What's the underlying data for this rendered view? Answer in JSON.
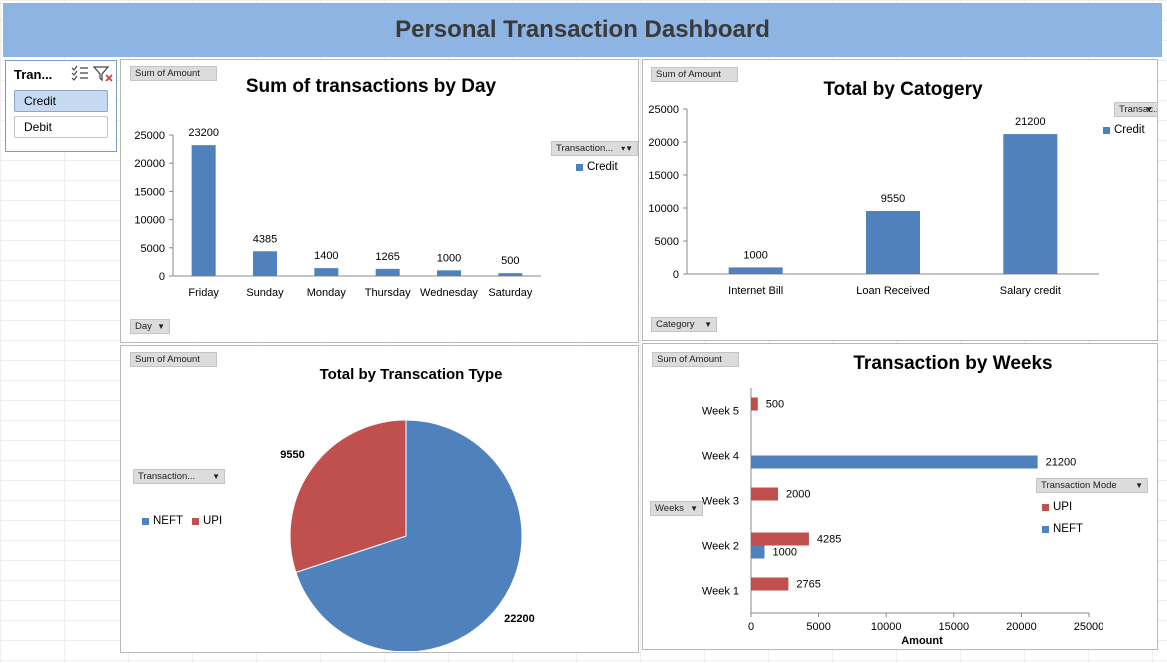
{
  "banner": {
    "title": "Personal Transaction Dashboard"
  },
  "slicer": {
    "title": "Tran...",
    "items": [
      "Credit",
      "Debit"
    ],
    "selected": "Credit"
  },
  "colors": {
    "blue": "#4f81bd",
    "red": "#c0504d",
    "banner": "#8eb4e3"
  },
  "chart_data": [
    {
      "type": "bar",
      "title": "Sum of transactions by Day",
      "field_button": "Sum of Amount",
      "axis_button": "Day",
      "legend_button": "Transaction...",
      "categories": [
        "Friday",
        "Sunday",
        "Monday",
        "Thursday",
        "Wednesday",
        "Saturday"
      ],
      "series": [
        {
          "name": "Credit",
          "values": [
            23200,
            4385,
            1400,
            1265,
            1000,
            500
          ]
        }
      ],
      "ylim": [
        0,
        25000
      ],
      "yticks": [
        "0",
        "5000",
        "10000",
        "15000",
        "20000",
        "25000"
      ],
      "data_labels": [
        "23200",
        "4385",
        "1400",
        "1265",
        "1000",
        "500"
      ]
    },
    {
      "type": "bar",
      "title": "Total by Catogery",
      "field_button": "Sum of Amount",
      "axis_button": "Category",
      "legend_button": "Transac...",
      "categories": [
        "Internet Bill",
        "Loan Received",
        "Salary credit"
      ],
      "series": [
        {
          "name": "Credit",
          "values": [
            1000,
            9550,
            21200
          ]
        }
      ],
      "ylim": [
        0,
        25000
      ],
      "yticks": [
        "0",
        "5000",
        "10000",
        "15000",
        "20000",
        "25000"
      ],
      "data_labels": [
        "1000",
        "9550",
        "21200"
      ]
    },
    {
      "type": "pie",
      "title": "Total by Transcation Type",
      "field_button": "Sum of Amount",
      "legend_button": "Transaction...",
      "categories": [
        "NEFT",
        "UPI"
      ],
      "values": [
        22200,
        9550
      ],
      "data_labels": [
        "22200",
        "9550"
      ]
    },
    {
      "type": "bar",
      "orientation": "horizontal",
      "title": "Transaction by Weeks",
      "field_button": "Sum of Amount",
      "axis_button": "Weeks",
      "legend_button": "Transaction Mode",
      "xlabel": "Amount",
      "categories": [
        "Week 1",
        "Week 2",
        "Week 3",
        "Week 4",
        "Week 5"
      ],
      "series": [
        {
          "name": "UPI",
          "values": [
            2765,
            4285,
            2000,
            null,
            500
          ],
          "labels": [
            "2765",
            "4285",
            "2000",
            "",
            "500"
          ]
        },
        {
          "name": "NEFT",
          "values": [
            null,
            1000,
            null,
            21200,
            null
          ],
          "labels": [
            "",
            "1000",
            "",
            "21200",
            ""
          ]
        }
      ],
      "xlim": [
        0,
        25000
      ],
      "xticks": [
        "0",
        "5000",
        "10000",
        "15000",
        "20000",
        "25000"
      ]
    }
  ]
}
